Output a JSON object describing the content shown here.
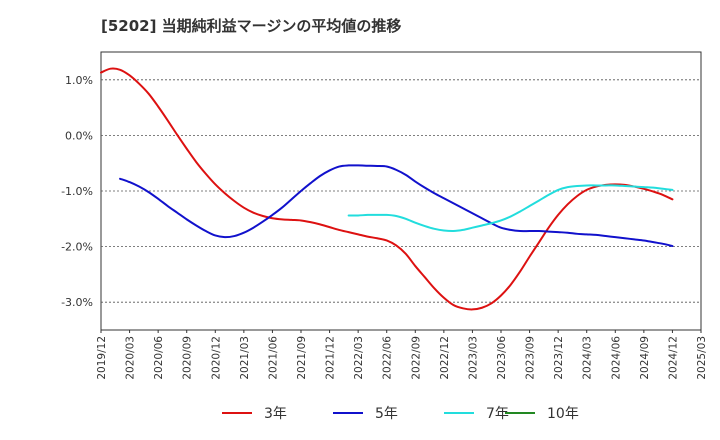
{
  "chart_data": {
    "type": "line",
    "title": "[5202]  当期純利益マージンの平均値の推移",
    "xlabel": "",
    "ylabel": "",
    "ylim": [
      -3.5,
      1.5
    ],
    "y_ticks": [
      "1.0%",
      "0.0%",
      "-1.0%",
      "-2.0%",
      "-3.0%"
    ],
    "y_tick_values": [
      1.0,
      0.0,
      -1.0,
      -2.0,
      -3.0
    ],
    "x_range": [
      "2019-12",
      "2025-03"
    ],
    "x_ticks": [
      "2019/12",
      "2020/03",
      "2020/06",
      "2020/09",
      "2020/12",
      "2021/03",
      "2021/06",
      "2021/09",
      "2021/12",
      "2022/03",
      "2022/06",
      "2022/09",
      "2022/12",
      "2023/03",
      "2023/06",
      "2023/09",
      "2023/12",
      "2024/03",
      "2024/06",
      "2024/09",
      "2024/12",
      "2025/03"
    ],
    "grid": "horizontal-dashed",
    "legend_position": "bottom",
    "series": [
      {
        "name": "3年",
        "color": "#dd1111",
        "points": [
          [
            "2019-12",
            1.13
          ],
          [
            "2020-01",
            1.2
          ],
          [
            "2020-02",
            1.18
          ],
          [
            "2020-03",
            1.08
          ],
          [
            "2020-04",
            0.93
          ],
          [
            "2020-05",
            0.75
          ],
          [
            "2020-06",
            0.52
          ],
          [
            "2020-07",
            0.27
          ],
          [
            "2020-08",
            0.01
          ],
          [
            "2020-09",
            -0.24
          ],
          [
            "2020-10",
            -0.48
          ],
          [
            "2020-11",
            -0.69
          ],
          [
            "2020-12",
            -0.88
          ],
          [
            "2021-01",
            -1.04
          ],
          [
            "2021-02",
            -1.18
          ],
          [
            "2021-03",
            -1.3
          ],
          [
            "2021-04",
            -1.39
          ],
          [
            "2021-05",
            -1.45
          ],
          [
            "2021-06",
            -1.49
          ],
          [
            "2021-07",
            -1.51
          ],
          [
            "2021-08",
            -1.52
          ],
          [
            "2021-09",
            -1.53
          ],
          [
            "2021-10",
            -1.56
          ],
          [
            "2021-11",
            -1.6
          ],
          [
            "2021-12",
            -1.65
          ],
          [
            "2022-01",
            -1.7
          ],
          [
            "2022-02",
            -1.74
          ],
          [
            "2022-03",
            -1.78
          ],
          [
            "2022-04",
            -1.82
          ],
          [
            "2022-05",
            -1.85
          ],
          [
            "2022-06",
            -1.89
          ],
          [
            "2022-07",
            -1.98
          ],
          [
            "2022-08",
            -2.13
          ],
          [
            "2022-09",
            -2.35
          ],
          [
            "2022-10",
            -2.55
          ],
          [
            "2022-11",
            -2.75
          ],
          [
            "2022-12",
            -2.92
          ],
          [
            "2023-01",
            -3.05
          ],
          [
            "2023-02",
            -3.11
          ],
          [
            "2023-03",
            -3.13
          ],
          [
            "2023-04",
            -3.1
          ],
          [
            "2023-05",
            -3.02
          ],
          [
            "2023-06",
            -2.88
          ],
          [
            "2023-07",
            -2.69
          ],
          [
            "2023-08",
            -2.45
          ],
          [
            "2023-09",
            -2.18
          ],
          [
            "2023-10",
            -1.92
          ],
          [
            "2023-11",
            -1.66
          ],
          [
            "2023-12",
            -1.43
          ],
          [
            "2024-01",
            -1.24
          ],
          [
            "2024-02",
            -1.09
          ],
          [
            "2024-03",
            -0.98
          ],
          [
            "2024-04",
            -0.92
          ],
          [
            "2024-05",
            -0.89
          ],
          [
            "2024-06",
            -0.88
          ],
          [
            "2024-07",
            -0.89
          ],
          [
            "2024-08",
            -0.92
          ],
          [
            "2024-09",
            -0.96
          ],
          [
            "2024-10",
            -1.01
          ],
          [
            "2024-11",
            -1.07
          ],
          [
            "2024-12",
            -1.15
          ]
        ]
      },
      {
        "name": "5年",
        "color": "#1111cc",
        "points": [
          [
            "2020-02",
            -0.78
          ],
          [
            "2020-03",
            -0.84
          ],
          [
            "2020-04",
            -0.92
          ],
          [
            "2020-05",
            -1.02
          ],
          [
            "2020-06",
            -1.14
          ],
          [
            "2020-07",
            -1.27
          ],
          [
            "2020-08",
            -1.39
          ],
          [
            "2020-09",
            -1.51
          ],
          [
            "2020-10",
            -1.62
          ],
          [
            "2020-11",
            -1.72
          ],
          [
            "2020-12",
            -1.8
          ],
          [
            "2021-01",
            -1.83
          ],
          [
            "2021-02",
            -1.81
          ],
          [
            "2021-03",
            -1.75
          ],
          [
            "2021-04",
            -1.66
          ],
          [
            "2021-05",
            -1.55
          ],
          [
            "2021-06",
            -1.43
          ],
          [
            "2021-07",
            -1.3
          ],
          [
            "2021-08",
            -1.15
          ],
          [
            "2021-09",
            -1.0
          ],
          [
            "2021-10",
            -0.86
          ],
          [
            "2021-11",
            -0.73
          ],
          [
            "2021-12",
            -0.63
          ],
          [
            "2022-01",
            -0.56
          ],
          [
            "2022-02",
            -0.54
          ],
          [
            "2022-03",
            -0.54
          ],
          [
            "2022-04",
            -0.545
          ],
          [
            "2022-05",
            -0.55
          ],
          [
            "2022-06",
            -0.56
          ],
          [
            "2022-07",
            -0.62
          ],
          [
            "2022-08",
            -0.71
          ],
          [
            "2022-09",
            -0.83
          ],
          [
            "2022-10",
            -0.94
          ],
          [
            "2022-11",
            -1.04
          ],
          [
            "2022-12",
            -1.13
          ],
          [
            "2023-01",
            -1.22
          ],
          [
            "2023-02",
            -1.31
          ],
          [
            "2023-03",
            -1.4
          ],
          [
            "2023-04",
            -1.49
          ],
          [
            "2023-05",
            -1.58
          ],
          [
            "2023-06",
            -1.66
          ],
          [
            "2023-07",
            -1.7
          ],
          [
            "2023-08",
            -1.72
          ],
          [
            "2023-09",
            -1.72
          ],
          [
            "2023-10",
            -1.72
          ],
          [
            "2023-11",
            -1.73
          ],
          [
            "2023-12",
            -1.74
          ],
          [
            "2024-01",
            -1.75
          ],
          [
            "2024-02",
            -1.77
          ],
          [
            "2024-03",
            -1.78
          ],
          [
            "2024-04",
            -1.79
          ],
          [
            "2024-05",
            -1.81
          ],
          [
            "2024-06",
            -1.83
          ],
          [
            "2024-07",
            -1.85
          ],
          [
            "2024-08",
            -1.87
          ],
          [
            "2024-09",
            -1.89
          ],
          [
            "2024-10",
            -1.92
          ],
          [
            "2024-11",
            -1.95
          ],
          [
            "2024-12",
            -1.99
          ]
        ]
      },
      {
        "name": "7年",
        "color": "#22dddd",
        "points": [
          [
            "2022-02",
            -1.44
          ],
          [
            "2022-03",
            -1.44
          ],
          [
            "2022-04",
            -1.43
          ],
          [
            "2022-05",
            -1.43
          ],
          [
            "2022-06",
            -1.43
          ],
          [
            "2022-07",
            -1.45
          ],
          [
            "2022-08",
            -1.5
          ],
          [
            "2022-09",
            -1.57
          ],
          [
            "2022-10",
            -1.63
          ],
          [
            "2022-11",
            -1.68
          ],
          [
            "2022-12",
            -1.71
          ],
          [
            "2023-01",
            -1.72
          ],
          [
            "2023-02",
            -1.7
          ],
          [
            "2023-03",
            -1.66
          ],
          [
            "2023-04",
            -1.62
          ],
          [
            "2023-05",
            -1.58
          ],
          [
            "2023-06",
            -1.53
          ],
          [
            "2023-07",
            -1.46
          ],
          [
            "2023-08",
            -1.37
          ],
          [
            "2023-09",
            -1.27
          ],
          [
            "2023-10",
            -1.17
          ],
          [
            "2023-11",
            -1.07
          ],
          [
            "2023-12",
            -0.98
          ],
          [
            "2024-01",
            -0.93
          ],
          [
            "2024-02",
            -0.91
          ],
          [
            "2024-03",
            -0.9
          ],
          [
            "2024-04",
            -0.9
          ],
          [
            "2024-05",
            -0.9
          ],
          [
            "2024-06",
            -0.9
          ],
          [
            "2024-07",
            -0.91
          ],
          [
            "2024-08",
            -0.92
          ],
          [
            "2024-09",
            -0.93
          ],
          [
            "2024-10",
            -0.94
          ],
          [
            "2024-11",
            -0.96
          ],
          [
            "2024-12",
            -0.98
          ]
        ]
      },
      {
        "name": "10年",
        "color": "#228822",
        "points": []
      }
    ]
  }
}
